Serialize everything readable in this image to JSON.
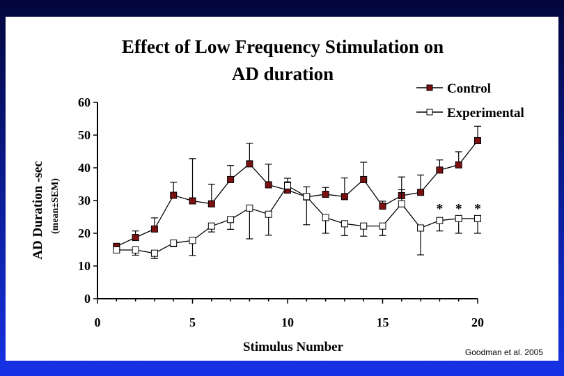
{
  "chart_data": {
    "type": "line",
    "title_lines": [
      "Effect of Low Frequency Stimulation on",
      "AD duration"
    ],
    "xlabel": "Stimulus Number",
    "ylabel": "AD Duration -sec",
    "ylabel_sub": "(mean±SEM)",
    "xlim": [
      0,
      20
    ],
    "ylim": [
      0,
      60
    ],
    "x_ticks": [
      0,
      5,
      10,
      15,
      20
    ],
    "y_ticks": [
      0,
      10,
      20,
      30,
      40,
      50,
      60
    ],
    "grid": false,
    "legend_position": "top-right",
    "x": [
      1,
      2,
      3,
      4,
      5,
      6,
      7,
      8,
      9,
      10,
      11,
      12,
      13,
      14,
      15,
      16,
      17,
      18,
      19,
      20
    ],
    "series": [
      {
        "name": "Control",
        "marker": "filled-square",
        "color": "#7a1010",
        "values": [
          16,
          18.7,
          21.3,
          31.6,
          29.9,
          29,
          36.4,
          41.2,
          34.8,
          33.2,
          31.1,
          31.9,
          31.2,
          36.4,
          28.3,
          31.5,
          32.5,
          39.3,
          40.9,
          48.3
        ],
        "error": [
          0.5,
          2,
          3.4,
          4,
          12.9,
          6,
          4.3,
          6.3,
          6.3,
          3.6,
          3.1,
          2.1,
          5.7,
          5.3,
          1.5,
          5.7,
          5.3,
          3.1,
          4,
          4.4
        ]
      },
      {
        "name": "Experimental",
        "marker": "open-square",
        "color": "#ffffff",
        "values": [
          14.9,
          14.9,
          13.9,
          17,
          17.8,
          22.2,
          24.2,
          27.7,
          25.8,
          34.5,
          31.2,
          24.8,
          22.9,
          22.2,
          22.2,
          29,
          21.6,
          23.9,
          24.5,
          24.5
        ],
        "error": [
          0.6,
          1.6,
          1.6,
          1.1,
          4.6,
          1.8,
          3,
          9.4,
          6.4,
          1.2,
          8.6,
          4.8,
          3.6,
          3.1,
          2.9,
          4.3,
          8.2,
          3.2,
          4.5,
          4.5
        ]
      }
    ],
    "annotations": [
      {
        "text": "*",
        "x": 18
      },
      {
        "text": "*",
        "x": 19
      },
      {
        "text": "*",
        "x": 20
      }
    ]
  },
  "citation": "Goodman et al. 2005"
}
